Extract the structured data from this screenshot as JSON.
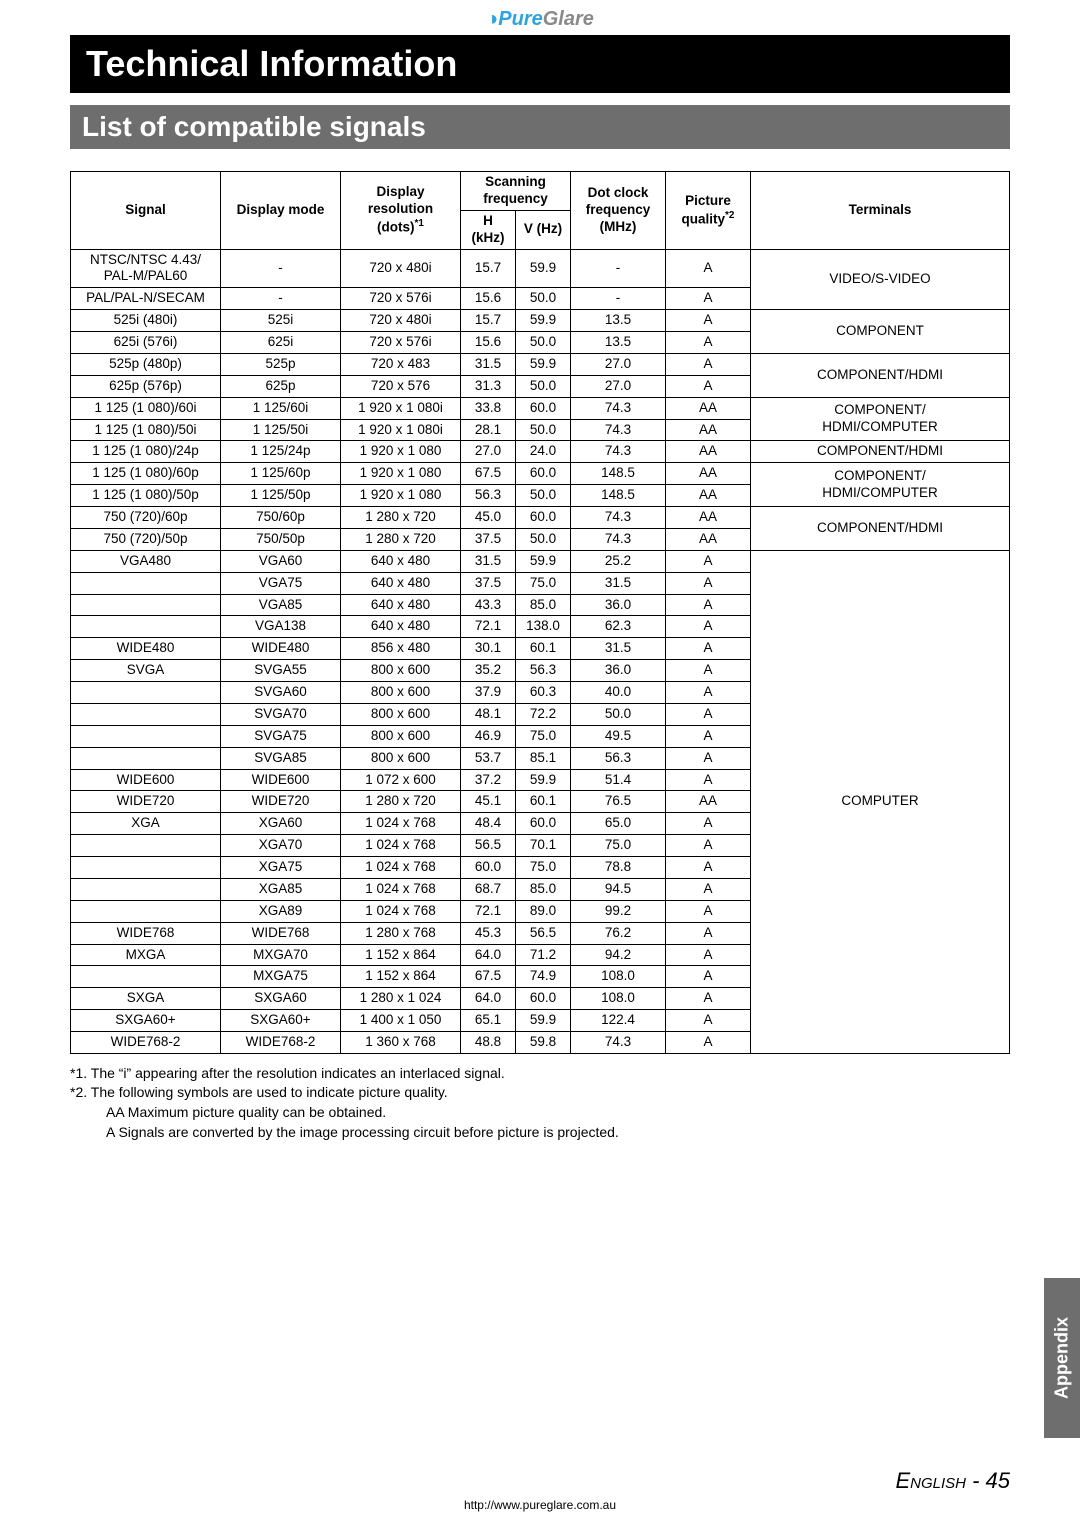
{
  "brand": {
    "left": "Pure",
    "right": "Glare",
    "swirl": "◑"
  },
  "title": "Technical Information",
  "section": "List of compatible signals",
  "headers": {
    "signal": "Signal",
    "mode": "Display mode",
    "res": "Display resolution (dots)",
    "res_sup": "*1",
    "scan": "Scanning frequency",
    "h": "H (kHz)",
    "v": "V (Hz)",
    "dot": "Dot clock frequency (MHz)",
    "pq": "Picture quality",
    "pq_sup": "*2",
    "term": "Terminals"
  },
  "rows": [
    {
      "signal": "NTSC/NTSC 4.43/\nPAL-M/PAL60",
      "mode": "-",
      "res": "720 x 480i",
      "h": "15.7",
      "v": "59.9",
      "dot": "-",
      "pq": "A",
      "term": "VIDEO/S-VIDEO",
      "termSpan": 2
    },
    {
      "signal": "PAL/PAL-N/SECAM",
      "mode": "-",
      "res": "720 x 576i",
      "h": "15.6",
      "v": "50.0",
      "dot": "-",
      "pq": "A"
    },
    {
      "signal": "525i (480i)",
      "mode": "525i",
      "res": "720 x 480i",
      "h": "15.7",
      "v": "59.9",
      "dot": "13.5",
      "pq": "A",
      "term": "COMPONENT",
      "termSpan": 2
    },
    {
      "signal": "625i (576i)",
      "mode": "625i",
      "res": "720 x 576i",
      "h": "15.6",
      "v": "50.0",
      "dot": "13.5",
      "pq": "A"
    },
    {
      "signal": "525p (480p)",
      "mode": "525p",
      "res": "720 x 483",
      "h": "31.5",
      "v": "59.9",
      "dot": "27.0",
      "pq": "A",
      "term": "COMPONENT/HDMI",
      "termSpan": 2
    },
    {
      "signal": "625p (576p)",
      "mode": "625p",
      "res": "720 x 576",
      "h": "31.3",
      "v": "50.0",
      "dot": "27.0",
      "pq": "A"
    },
    {
      "signal": "1 125 (1 080)/60i",
      "mode": "1 125/60i",
      "res": "1 920 x 1 080i",
      "h": "33.8",
      "v": "60.0",
      "dot": "74.3",
      "pq": "AA",
      "term": "COMPONENT/\nHDMI/COMPUTER",
      "termSpan": 2
    },
    {
      "signal": "1 125 (1 080)/50i",
      "mode": "1 125/50i",
      "res": "1 920 x 1 080i",
      "h": "28.1",
      "v": "50.0",
      "dot": "74.3",
      "pq": "AA"
    },
    {
      "signal": "1 125 (1 080)/24p",
      "mode": "1 125/24p",
      "res": "1 920 x 1 080",
      "h": "27.0",
      "v": "24.0",
      "dot": "74.3",
      "pq": "AA",
      "term": "COMPONENT/HDMI",
      "termSpan": 1
    },
    {
      "signal": "1 125 (1 080)/60p",
      "mode": "1 125/60p",
      "res": "1 920 x 1 080",
      "h": "67.5",
      "v": "60.0",
      "dot": "148.5",
      "pq": "AA",
      "term": "COMPONENT/\nHDMI/COMPUTER",
      "termSpan": 2
    },
    {
      "signal": "1 125 (1 080)/50p",
      "mode": "1 125/50p",
      "res": "1 920 x 1 080",
      "h": "56.3",
      "v": "50.0",
      "dot": "148.5",
      "pq": "AA"
    },
    {
      "signal": "750 (720)/60p",
      "mode": "750/60p",
      "res": "1 280 x 720",
      "h": "45.0",
      "v": "60.0",
      "dot": "74.3",
      "pq": "AA",
      "term": "COMPONENT/HDMI",
      "termSpan": 2
    },
    {
      "signal": "750 (720)/50p",
      "mode": "750/50p",
      "res": "1 280 x 720",
      "h": "37.5",
      "v": "50.0",
      "dot": "74.3",
      "pq": "AA"
    },
    {
      "signal": "VGA480",
      "mode": "VGA60",
      "res": "640 x 480",
      "h": "31.5",
      "v": "59.9",
      "dot": "25.2",
      "pq": "A",
      "term": "COMPUTER",
      "termSpan": 23
    },
    {
      "signal": "",
      "mode": "VGA75",
      "res": "640 x 480",
      "h": "37.5",
      "v": "75.0",
      "dot": "31.5",
      "pq": "A"
    },
    {
      "signal": "",
      "mode": "VGA85",
      "res": "640 x 480",
      "h": "43.3",
      "v": "85.0",
      "dot": "36.0",
      "pq": "A"
    },
    {
      "signal": "",
      "mode": "VGA138",
      "res": "640 x 480",
      "h": "72.1",
      "v": "138.0",
      "dot": "62.3",
      "pq": "A"
    },
    {
      "signal": "WIDE480",
      "mode": "WIDE480",
      "res": "856 x 480",
      "h": "30.1",
      "v": "60.1",
      "dot": "31.5",
      "pq": "A"
    },
    {
      "signal": "SVGA",
      "mode": "SVGA55",
      "res": "800 x 600",
      "h": "35.2",
      "v": "56.3",
      "dot": "36.0",
      "pq": "A"
    },
    {
      "signal": "",
      "mode": "SVGA60",
      "res": "800 x 600",
      "h": "37.9",
      "v": "60.3",
      "dot": "40.0",
      "pq": "A"
    },
    {
      "signal": "",
      "mode": "SVGA70",
      "res": "800 x 600",
      "h": "48.1",
      "v": "72.2",
      "dot": "50.0",
      "pq": "A"
    },
    {
      "signal": "",
      "mode": "SVGA75",
      "res": "800 x 600",
      "h": "46.9",
      "v": "75.0",
      "dot": "49.5",
      "pq": "A"
    },
    {
      "signal": "",
      "mode": "SVGA85",
      "res": "800 x 600",
      "h": "53.7",
      "v": "85.1",
      "dot": "56.3",
      "pq": "A"
    },
    {
      "signal": "WIDE600",
      "mode": "WIDE600",
      "res": "1 072 x 600",
      "h": "37.2",
      "v": "59.9",
      "dot": "51.4",
      "pq": "A"
    },
    {
      "signal": "WIDE720",
      "mode": "WIDE720",
      "res": "1 280 x 720",
      "h": "45.1",
      "v": "60.1",
      "dot": "76.5",
      "pq": "AA"
    },
    {
      "signal": "XGA",
      "mode": "XGA60",
      "res": "1 024 x 768",
      "h": "48.4",
      "v": "60.0",
      "dot": "65.0",
      "pq": "A"
    },
    {
      "signal": "",
      "mode": "XGA70",
      "res": "1 024 x 768",
      "h": "56.5",
      "v": "70.1",
      "dot": "75.0",
      "pq": "A"
    },
    {
      "signal": "",
      "mode": "XGA75",
      "res": "1 024 x 768",
      "h": "60.0",
      "v": "75.0",
      "dot": "78.8",
      "pq": "A"
    },
    {
      "signal": "",
      "mode": "XGA85",
      "res": "1 024 x 768",
      "h": "68.7",
      "v": "85.0",
      "dot": "94.5",
      "pq": "A"
    },
    {
      "signal": "",
      "mode": "XGA89",
      "res": "1 024 x 768",
      "h": "72.1",
      "v": "89.0",
      "dot": "99.2",
      "pq": "A"
    },
    {
      "signal": "WIDE768",
      "mode": "WIDE768",
      "res": "1 280 x 768",
      "h": "45.3",
      "v": "56.5",
      "dot": "76.2",
      "pq": "A"
    },
    {
      "signal": "MXGA",
      "mode": "MXGA70",
      "res": "1 152 x 864",
      "h": "64.0",
      "v": "71.2",
      "dot": "94.2",
      "pq": "A"
    },
    {
      "signal": "",
      "mode": "MXGA75",
      "res": "1 152 x 864",
      "h": "67.5",
      "v": "74.9",
      "dot": "108.0",
      "pq": "A"
    },
    {
      "signal": "SXGA",
      "mode": "SXGA60",
      "res": "1 280 x 1 024",
      "h": "64.0",
      "v": "60.0",
      "dot": "108.0",
      "pq": "A"
    },
    {
      "signal": "SXGA60+",
      "mode": "SXGA60+",
      "res": "1 400 x 1 050",
      "h": "65.1",
      "v": "59.9",
      "dot": "122.4",
      "pq": "A"
    },
    {
      "signal": "WIDE768-2",
      "mode": "WIDE768-2",
      "res": "1 360 x 768",
      "h": "48.8",
      "v": "59.8",
      "dot": "74.3",
      "pq": "A"
    }
  ],
  "footnotes": {
    "f1": "*1.  The “i” appearing after the resolution indicates an interlaced signal.",
    "f2": "*2.  The following symbols are used to indicate picture quality.",
    "aa": "AA   Maximum picture quality can be obtained.",
    "a": "A    Signals are converted by the image processing circuit before picture is projected."
  },
  "sidetab": "Appendix",
  "footer": {
    "lang": "English",
    "page": " - 45",
    "url": "http://www.pureglare.com.au"
  }
}
